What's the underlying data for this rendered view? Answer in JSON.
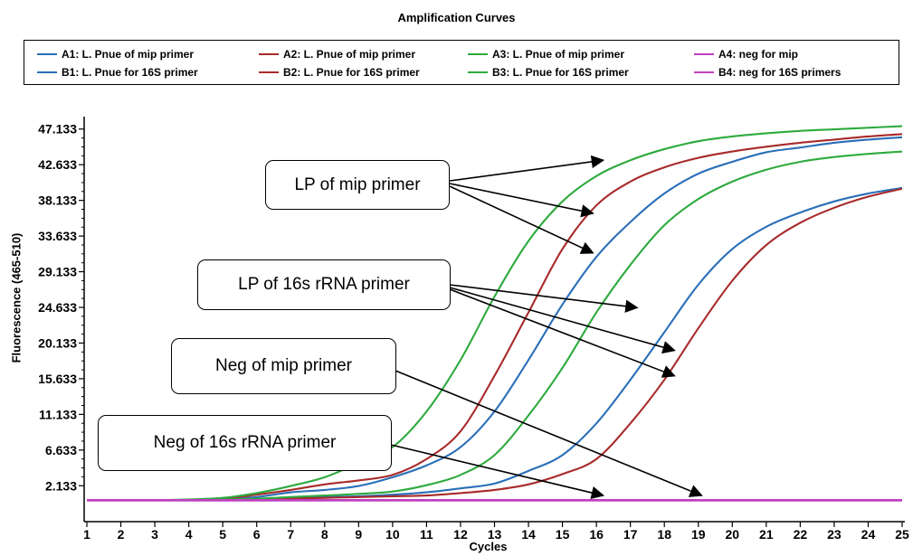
{
  "chart_data": {
    "type": "line",
    "title": "Amplification Curves",
    "xlabel": "Cycles",
    "ylabel": "Fluorescence (465-510)",
    "xlim": [
      1,
      25
    ],
    "ylim": [
      -2.4,
      48.7
    ],
    "x_ticks": [
      1,
      2,
      3,
      4,
      5,
      6,
      7,
      8,
      9,
      10,
      11,
      12,
      13,
      14,
      15,
      16,
      17,
      18,
      19,
      20,
      21,
      22,
      23,
      24,
      25
    ],
    "y_ticks": [
      "47.133",
      "42.633",
      "38.133",
      "33.633",
      "29.133",
      "24.633",
      "20.133",
      "15.633",
      "11.133",
      "6.633",
      "2.133"
    ],
    "legend_position": "top",
    "series": [
      {
        "name": "A1: L. Pnue of mip primer",
        "color": "#2a6fb8",
        "values": [
          0.3,
          0.3,
          0.3,
          0.35,
          0.45,
          0.7,
          1.3,
          1.6,
          2.1,
          3.2,
          4.7,
          7.0,
          11.5,
          18.0,
          25.0,
          31.0,
          35.4,
          39.0,
          41.5,
          43.0,
          44.2,
          44.8,
          45.4,
          45.8,
          46.1
        ]
      },
      {
        "name": "A2: L. Pnue of mip primer",
        "color": "#a82a2a",
        "values": [
          0.3,
          0.3,
          0.3,
          0.35,
          0.5,
          1.0,
          1.6,
          2.3,
          2.8,
          3.5,
          5.5,
          9.0,
          16.0,
          24.0,
          32.0,
          37.5,
          40.5,
          42.3,
          43.5,
          44.3,
          44.9,
          45.4,
          45.8,
          46.2,
          46.5
        ]
      },
      {
        "name": "A3: L. Pnue of mip primer",
        "color": "#2eaa3e",
        "values": [
          0.3,
          0.3,
          0.3,
          0.4,
          0.6,
          1.2,
          2.1,
          3.2,
          5.0,
          7.0,
          11.5,
          18.0,
          26.0,
          33.0,
          38.0,
          41.2,
          43.2,
          44.6,
          45.6,
          46.2,
          46.6,
          46.9,
          47.1,
          47.3,
          47.5
        ]
      },
      {
        "name": "A4: neg for mip",
        "color": "#c040c0",
        "values": [
          0.3,
          0.3,
          0.3,
          0.3,
          0.3,
          0.3,
          0.3,
          0.3,
          0.3,
          0.3,
          0.3,
          0.3,
          0.3,
          0.3,
          0.3,
          0.3,
          0.3,
          0.3,
          0.3,
          0.3,
          0.3,
          0.3,
          0.3,
          0.3,
          0.3
        ]
      },
      {
        "name": "B1: L. Pnue for 16S primer",
        "color": "#2a6fb8",
        "values": [
          0.3,
          0.3,
          0.3,
          0.3,
          0.35,
          0.4,
          0.5,
          0.7,
          0.8,
          1.0,
          1.3,
          1.8,
          2.4,
          4.0,
          6.0,
          10.0,
          15.5,
          21.5,
          27.5,
          32.0,
          34.8,
          36.6,
          38.0,
          39.0,
          39.7
        ]
      },
      {
        "name": "B2: L. Pnue for 16S primer",
        "color": "#a82a2a",
        "values": [
          0.3,
          0.3,
          0.3,
          0.3,
          0.35,
          0.4,
          0.5,
          0.6,
          0.7,
          0.8,
          0.9,
          1.2,
          1.6,
          2.3,
          3.6,
          5.5,
          10.0,
          15.5,
          22.0,
          28.0,
          32.5,
          35.3,
          37.2,
          38.6,
          39.6
        ]
      },
      {
        "name": "B3: L. Pnue for 16S primer",
        "color": "#2eaa3e",
        "values": [
          0.3,
          0.3,
          0.3,
          0.3,
          0.4,
          0.5,
          0.7,
          0.9,
          1.1,
          1.4,
          2.2,
          3.5,
          6.0,
          11.0,
          17.0,
          24.0,
          30.0,
          35.0,
          38.3,
          40.5,
          42.0,
          43.0,
          43.6,
          44.0,
          44.3
        ]
      },
      {
        "name": "B4: neg for 16S primers",
        "color": "#c040c0",
        "values": [
          0.3,
          0.3,
          0.3,
          0.3,
          0.3,
          0.3,
          0.3,
          0.3,
          0.3,
          0.3,
          0.3,
          0.3,
          0.3,
          0.3,
          0.3,
          0.3,
          0.3,
          0.3,
          0.3,
          0.3,
          0.3,
          0.3,
          0.3,
          0.3,
          0.3
        ]
      }
    ],
    "annotations": [
      {
        "text": "LP of mip primer",
        "targets": [
          [
            16.2,
            43.2
          ],
          [
            15.9,
            36.5
          ],
          [
            15.9,
            31.5
          ]
        ]
      },
      {
        "text": "LP of 16s rRNA primer",
        "targets": [
          [
            17.2,
            24.6
          ],
          [
            18.3,
            19.2
          ],
          [
            18.3,
            16.0
          ]
        ]
      },
      {
        "text": "Neg of mip primer",
        "targets": [
          [
            19.1,
            0.9
          ]
        ]
      },
      {
        "text": "Neg of 16s rRNA primer",
        "targets": [
          [
            16.2,
            0.9
          ]
        ]
      }
    ]
  }
}
